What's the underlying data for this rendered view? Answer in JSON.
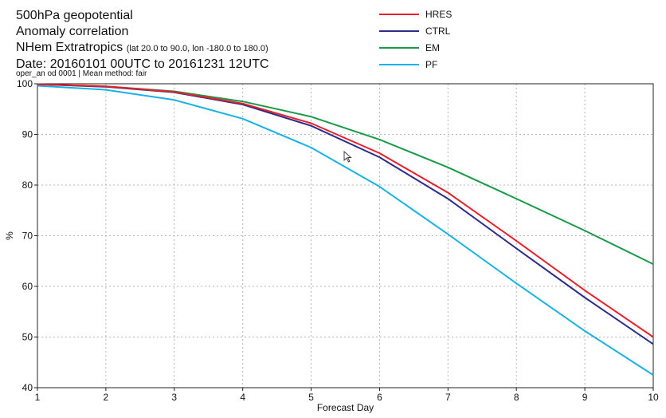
{
  "chart_data": {
    "type": "line",
    "title_lines": [
      "500hPa geopotential",
      "Anomaly correlation"
    ],
    "region": "NHem Extratropics",
    "region_detail": "(lat  20.0 to 90.0, lon  -180.0 to  180.0)",
    "date_range": "Date: 20160101 00UTC to 20161231 12UTC",
    "meta": "oper_an od 0001 | Mean method: fair",
    "xlabel": "Forecast Day",
    "ylabel": "%",
    "xlim": [
      1,
      10
    ],
    "ylim": [
      40,
      100
    ],
    "xticks": [
      1,
      2,
      3,
      4,
      5,
      6,
      7,
      8,
      9,
      10
    ],
    "yticks": [
      40,
      50,
      60,
      70,
      80,
      90,
      100
    ],
    "grid": true,
    "legend_position": "top-center",
    "x": [
      1,
      2,
      3,
      4,
      5,
      6,
      7,
      8,
      9,
      10
    ],
    "series": [
      {
        "name": "HRES",
        "color": "#e8202a",
        "values": [
          99.9,
          99.5,
          98.4,
          96.1,
          92.2,
          86.3,
          78.5,
          69.0,
          59.2,
          50.0
        ]
      },
      {
        "name": "CTRL",
        "color": "#2b2d86",
        "values": [
          99.9,
          99.4,
          98.3,
          95.9,
          91.7,
          85.5,
          77.3,
          67.5,
          57.8,
          48.6
        ]
      },
      {
        "name": "EM",
        "color": "#1a9a48",
        "values": [
          99.9,
          99.5,
          98.5,
          96.5,
          93.5,
          89.0,
          83.5,
          77.3,
          71.0,
          64.4
        ]
      },
      {
        "name": "PF",
        "color": "#19b2e6",
        "values": [
          99.6,
          98.8,
          96.8,
          93.1,
          87.4,
          79.7,
          70.3,
          60.6,
          51.2,
          42.5
        ]
      }
    ]
  }
}
